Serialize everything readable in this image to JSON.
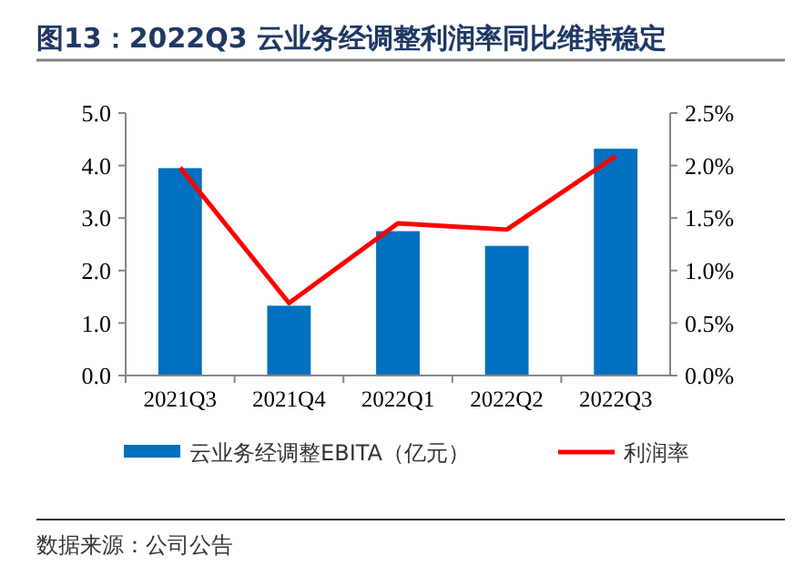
{
  "chart_data": {
    "type": "bar",
    "title": "图13：2022Q3 云业务经调整利润率同比维持稳定",
    "categories": [
      "2021Q3",
      "2021Q4",
      "2022Q1",
      "2022Q2",
      "2022Q3"
    ],
    "series": [
      {
        "name": "云业务经调整EBITA（亿元）",
        "color": "#0070c0",
        "values": [
          3.95,
          1.33,
          2.75,
          2.47,
          4.32
        ]
      },
      {
        "name": "利润率",
        "type": "line",
        "axis": "y2",
        "color": "#ff0000",
        "values": [
          1.98,
          0.69,
          1.45,
          1.39,
          2.09
        ]
      }
    ],
    "ylim": [
      0,
      5
    ],
    "yticks": [
      {
        "value": 0,
        "label": "0.0"
      },
      {
        "value": 1,
        "label": "1.0"
      },
      {
        "value": 2,
        "label": "2.0"
      },
      {
        "value": 3,
        "label": "3.0"
      },
      {
        "value": 4,
        "label": "4.0"
      },
      {
        "value": 5,
        "label": "5.0"
      }
    ],
    "y2lim": [
      0,
      2.5
    ],
    "y2ticks": [
      {
        "value": 0,
        "label": "0.0%"
      },
      {
        "value": 0.5,
        "label": "0.5%"
      },
      {
        "value": 1,
        "label": "1.0%"
      },
      {
        "value": 1.5,
        "label": "1.5%"
      },
      {
        "value": 2,
        "label": "2.0%"
      },
      {
        "value": 2.5,
        "label": "2.5%"
      }
    ],
    "legend": "bottom",
    "grid": false,
    "marker": "none",
    "annotations": [
      "数据来源：公司公告"
    ]
  }
}
